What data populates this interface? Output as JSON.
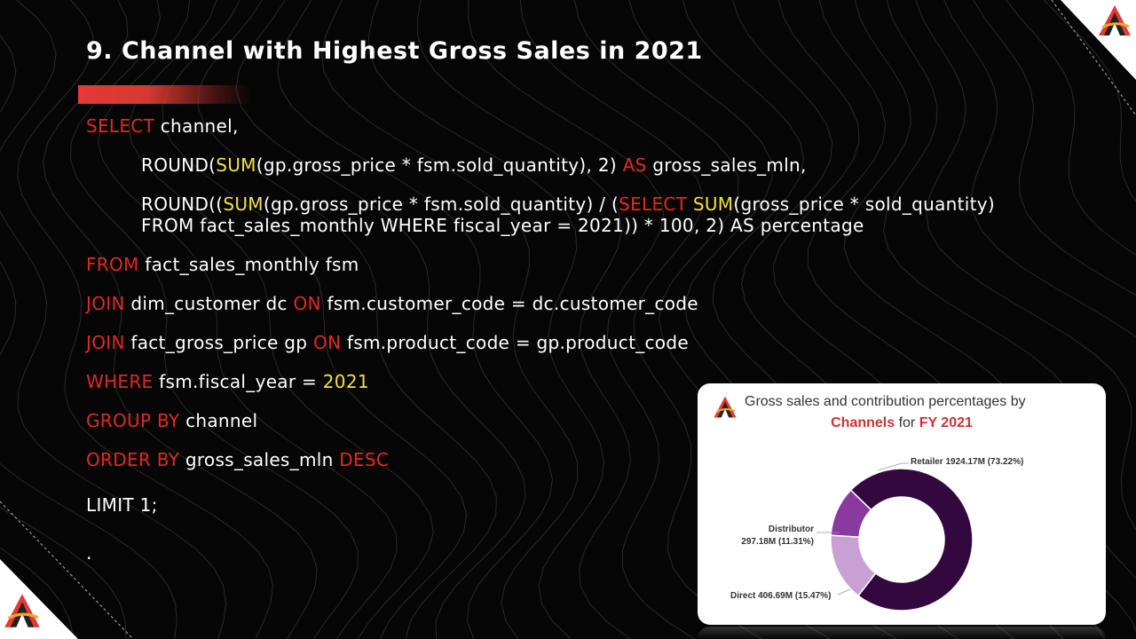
{
  "slide": {
    "title": "9. Channel with Highest Gross Sales in 2021"
  },
  "sql": {
    "l1_kw": "SELECT",
    "l1_rest": " channel,",
    "l2_a": "ROUND(",
    "l2_fn": "SUM",
    "l2_b": "(gp.gross_price * fsm.sold_quantity), 2) ",
    "l2_kw": "AS",
    "l2_c": " gross_sales_mln,",
    "l3_a": "ROUND((",
    "l3_fn1": "SUM",
    "l3_b": "(gp.gross_price * fsm.sold_quantity) / (",
    "l3_kw": "SELECT",
    "l3_sp": " ",
    "l3_fn2": "SUM",
    "l3_c": "(gross_price * sold_quantity) FROM fact_sales_monthly WHERE fiscal_year = 2021)) * 100, 2) AS percentage",
    "l4_kw": "FROM",
    "l4_rest": " fact_sales_monthly fsm",
    "l5_kw1": "JOIN",
    "l5_a": " dim_customer dc ",
    "l5_kw2": "ON",
    "l5_b": " fsm.customer_code = dc.customer_code",
    "l6_kw1": "JOIN",
    "l6_a": " fact_gross_price gp ",
    "l6_kw2": "ON",
    "l6_b": " fsm.product_code = gp.product_code",
    "l7_kw": "WHERE",
    "l7_a": " fsm.fiscal_year = ",
    "l7_num": "2021",
    "l8_kw": "GROUP BY",
    "l8_rest": " channel",
    "l9_kw1": "ORDER BY",
    "l9_a": " gross_sales_mln ",
    "l9_kw2": "DESC",
    "l10": "LIMIT 1;",
    "l11": "."
  },
  "chart_title": {
    "line1": "Gross sales and contribution percentages by",
    "line2_a": "Channels",
    "line2_b": " for ",
    "line2_c": "FY 2021"
  },
  "chart_data": {
    "type": "pie",
    "donut": true,
    "title": "Gross sales and contribution percentages by Channels for FY 2021",
    "slices": [
      {
        "name": "Retailer",
        "value": 1924.17,
        "percent": 73.22,
        "label": "Retailer 1924.17M (73.22%)",
        "color": "#33083f"
      },
      {
        "name": "Direct",
        "value": 406.69,
        "percent": 15.47,
        "label": "Direct 406.69M (15.47%)",
        "color": "#c8a0d4"
      },
      {
        "name": "Distributor",
        "value": 297.18,
        "percent": 11.31,
        "label_line1": "Distributor",
        "label_line2": "297.18M (11.31%)",
        "color": "#8a3a9e"
      }
    ]
  },
  "colors": {
    "keyword": "#e0291f",
    "function": "#f0e040",
    "accent": "#e53935"
  },
  "icons": {
    "logo": "atliq-logo-icon"
  }
}
